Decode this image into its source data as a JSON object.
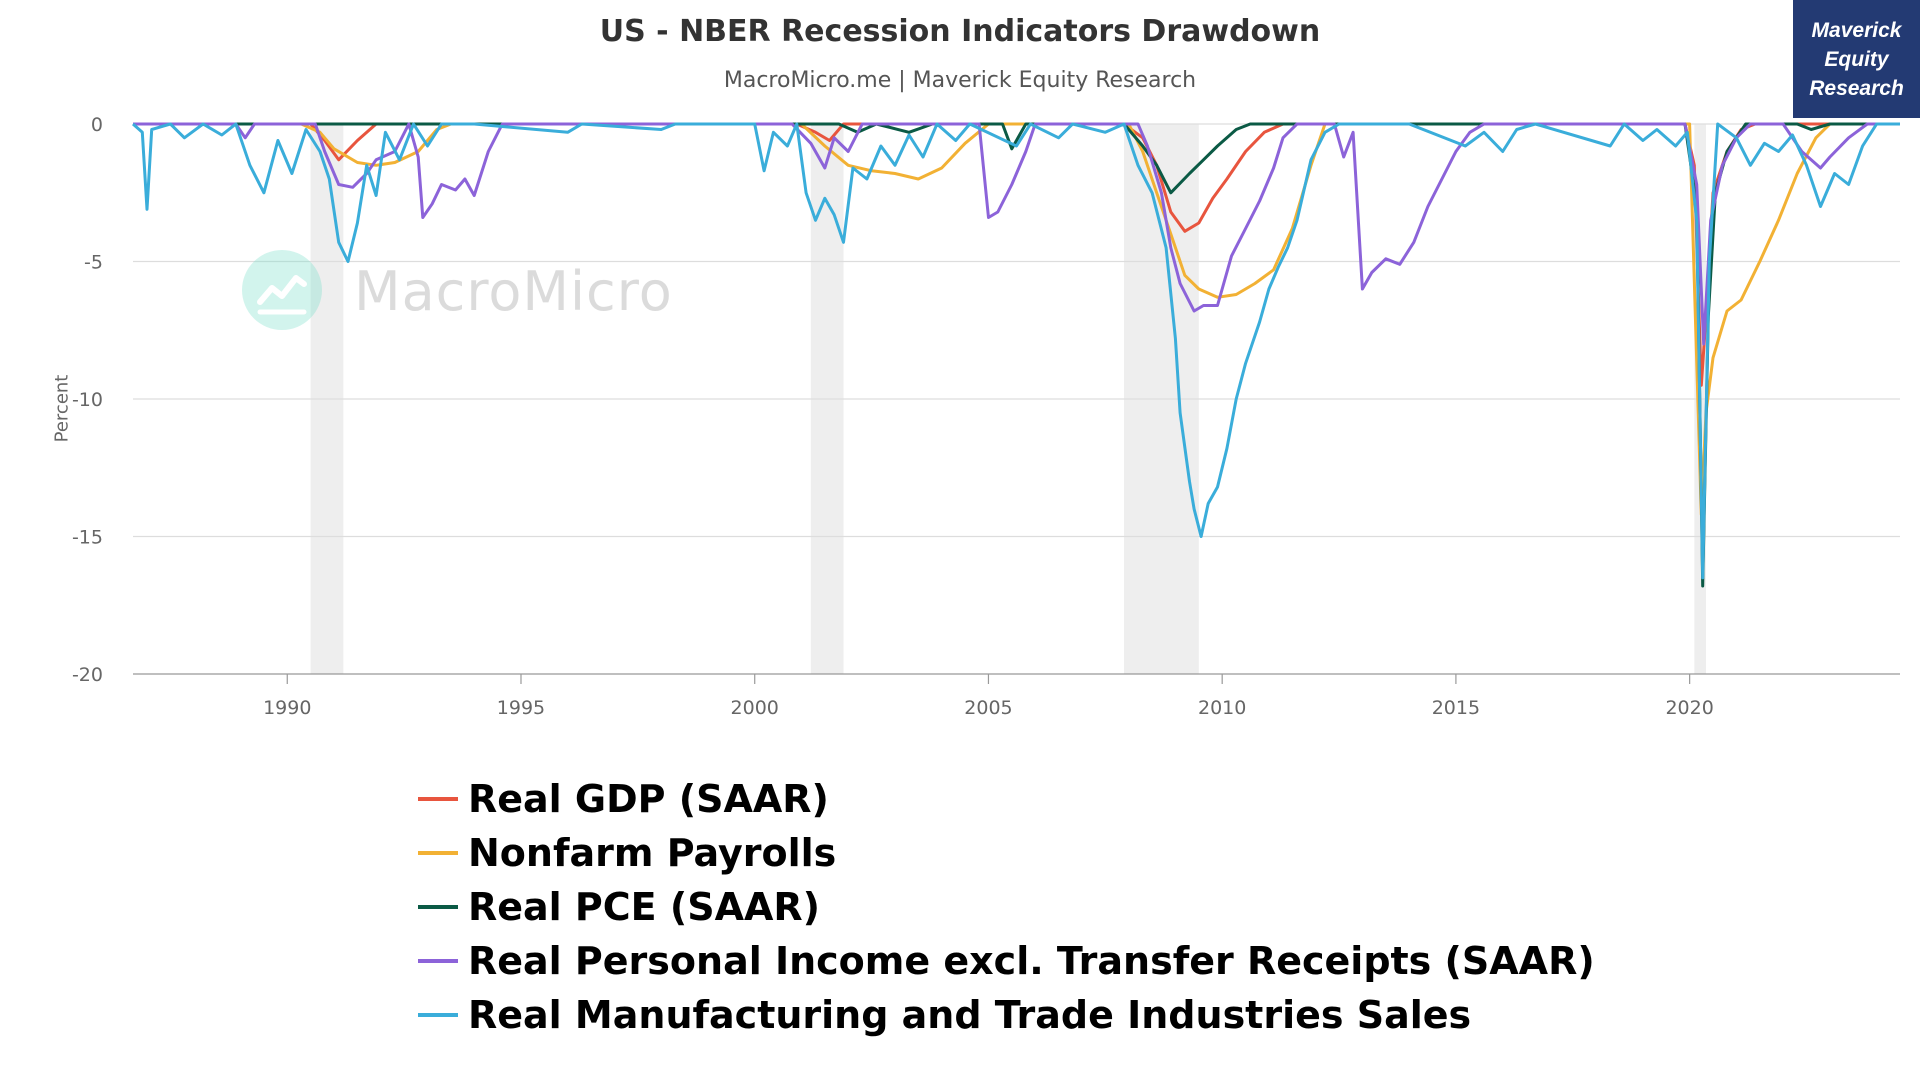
{
  "header": {
    "title": "US - NBER Recession Indicators Drawdown",
    "subtitle": "MacroMicro.me | Maverick Equity Research",
    "brand": "Maverick\nEquity\nResearch",
    "watermark": "MacroMicro"
  },
  "chart_data": {
    "type": "line",
    "title": "US - NBER Recession Indicators Drawdown",
    "xlabel": "",
    "ylabel": "Percent",
    "xlim": [
      1986.7,
      2024.5
    ],
    "ylim": [
      -20,
      0
    ],
    "x_ticks": [
      1990,
      1995,
      2000,
      2005,
      2010,
      2015,
      2020
    ],
    "y_ticks": [
      0,
      -5,
      -10,
      -15,
      -20
    ],
    "grid": true,
    "legend_position": "bottom",
    "recession_bands": [
      [
        1990.5,
        1991.2
      ],
      [
        2001.2,
        2001.9
      ],
      [
        2007.9,
        2009.5
      ],
      [
        2020.1,
        2020.35
      ]
    ],
    "series": [
      {
        "name": "Real GDP (SAAR)",
        "color": "#e8553e",
        "points": [
          [
            1986.7,
            0
          ],
          [
            1990.5,
            0
          ],
          [
            1990.8,
            -0.6
          ],
          [
            1991.1,
            -1.3
          ],
          [
            1991.5,
            -0.6
          ],
          [
            1991.9,
            0
          ],
          [
            2000.9,
            0
          ],
          [
            2001.3,
            -0.3
          ],
          [
            2001.6,
            -0.6
          ],
          [
            2001.9,
            0
          ],
          [
            2007.9,
            0
          ],
          [
            2008.3,
            -0.5
          ],
          [
            2008.6,
            -1.5
          ],
          [
            2008.9,
            -3.2
          ],
          [
            2009.2,
            -3.9
          ],
          [
            2009.5,
            -3.6
          ],
          [
            2009.8,
            -2.7
          ],
          [
            2010.1,
            -2.0
          ],
          [
            2010.5,
            -1.0
          ],
          [
            2010.9,
            -0.3
          ],
          [
            2011.3,
            0
          ],
          [
            2019.9,
            0
          ],
          [
            2020.1,
            -1.5
          ],
          [
            2020.25,
            -9.5
          ],
          [
            2020.35,
            -7.0
          ],
          [
            2020.5,
            -2.5
          ],
          [
            2020.8,
            -1.0
          ],
          [
            2021.1,
            -0.2
          ],
          [
            2021.4,
            0
          ],
          [
            2024.5,
            0
          ]
        ]
      },
      {
        "name": "Nonfarm Payrolls",
        "color": "#f2b134",
        "points": [
          [
            1986.7,
            0
          ],
          [
            1990.3,
            0
          ],
          [
            1990.7,
            -0.3
          ],
          [
            1991.0,
            -0.9
          ],
          [
            1991.5,
            -1.4
          ],
          [
            1991.9,
            -1.5
          ],
          [
            1992.3,
            -1.4
          ],
          [
            1992.8,
            -1.0
          ],
          [
            1993.2,
            -0.2
          ],
          [
            1993.5,
            0
          ],
          [
            2001.0,
            0
          ],
          [
            2001.5,
            -0.8
          ],
          [
            2002.0,
            -1.5
          ],
          [
            2002.5,
            -1.7
          ],
          [
            2003.0,
            -1.8
          ],
          [
            2003.5,
            -2.0
          ],
          [
            2004.0,
            -1.6
          ],
          [
            2004.5,
            -0.7
          ],
          [
            2005.0,
            0
          ],
          [
            2008.0,
            0
          ],
          [
            2008.3,
            -1.0
          ],
          [
            2008.6,
            -2.5
          ],
          [
            2008.9,
            -4.0
          ],
          [
            2009.2,
            -5.5
          ],
          [
            2009.5,
            -6.0
          ],
          [
            2009.9,
            -6.3
          ],
          [
            2010.3,
            -6.2
          ],
          [
            2010.7,
            -5.8
          ],
          [
            2011.1,
            -5.3
          ],
          [
            2011.5,
            -3.8
          ],
          [
            2011.9,
            -1.5
          ],
          [
            2012.2,
            0
          ],
          [
            2020.0,
            0
          ],
          [
            2020.25,
            -14.2
          ],
          [
            2020.35,
            -10.5
          ],
          [
            2020.5,
            -8.5
          ],
          [
            2020.8,
            -6.8
          ],
          [
            2021.1,
            -6.4
          ],
          [
            2021.5,
            -5.0
          ],
          [
            2021.9,
            -3.5
          ],
          [
            2022.3,
            -1.8
          ],
          [
            2022.7,
            -0.5
          ],
          [
            2023.0,
            0
          ],
          [
            2024.5,
            0
          ]
        ]
      },
      {
        "name": "Real PCE (SAAR)",
        "color": "#0b5a45",
        "points": [
          [
            1986.7,
            0
          ],
          [
            2001.8,
            0
          ],
          [
            2002.2,
            -0.3
          ],
          [
            2002.6,
            0
          ],
          [
            2003.3,
            -0.3
          ],
          [
            2003.8,
            0
          ],
          [
            2005.3,
            0
          ],
          [
            2005.5,
            -0.9
          ],
          [
            2005.8,
            0
          ],
          [
            2007.9,
            0
          ],
          [
            2008.3,
            -0.8
          ],
          [
            2008.6,
            -1.5
          ],
          [
            2008.9,
            -2.5
          ],
          [
            2009.3,
            -1.8
          ],
          [
            2009.6,
            -1.3
          ],
          [
            2009.9,
            -0.8
          ],
          [
            2010.3,
            -0.2
          ],
          [
            2010.6,
            0
          ],
          [
            2019.9,
            0
          ],
          [
            2020.15,
            -3.0
          ],
          [
            2020.28,
            -16.8
          ],
          [
            2020.4,
            -7.0
          ],
          [
            2020.55,
            -2.5
          ],
          [
            2020.8,
            -1.0
          ],
          [
            2021.2,
            0
          ],
          [
            2022.3,
            0
          ],
          [
            2022.6,
            -0.2
          ],
          [
            2023.0,
            0
          ],
          [
            2024.5,
            0
          ]
        ]
      },
      {
        "name": "Real Personal Income excl. Transfer Receipts (SAAR)",
        "color": "#8c63d9",
        "points": [
          [
            1986.7,
            0
          ],
          [
            1988.9,
            0
          ],
          [
            1989.1,
            -0.5
          ],
          [
            1989.3,
            0
          ],
          [
            1990.6,
            0
          ],
          [
            1990.8,
            -1.0
          ],
          [
            1991.1,
            -2.2
          ],
          [
            1991.4,
            -2.3
          ],
          [
            1991.7,
            -1.8
          ],
          [
            1991.9,
            -1.3
          ],
          [
            1992.3,
            -1.0
          ],
          [
            1992.6,
            0
          ],
          [
            1992.8,
            -1.2
          ],
          [
            1992.9,
            -3.4
          ],
          [
            1993.1,
            -2.9
          ],
          [
            1993.3,
            -2.2
          ],
          [
            1993.6,
            -2.4
          ],
          [
            1993.8,
            -2.0
          ],
          [
            1994.0,
            -2.6
          ],
          [
            1994.3,
            -1.0
          ],
          [
            1994.6,
            0
          ],
          [
            2000.8,
            0
          ],
          [
            2001.2,
            -0.7
          ],
          [
            2001.5,
            -1.6
          ],
          [
            2001.7,
            -0.5
          ],
          [
            2002.0,
            -1.0
          ],
          [
            2002.3,
            0
          ],
          [
            2004.8,
            0
          ],
          [
            2005.0,
            -3.4
          ],
          [
            2005.2,
            -3.2
          ],
          [
            2005.5,
            -2.2
          ],
          [
            2005.8,
            -1.0
          ],
          [
            2006.0,
            0
          ],
          [
            2008.2,
            0
          ],
          [
            2008.4,
            -0.8
          ],
          [
            2008.7,
            -2.5
          ],
          [
            2008.9,
            -4.5
          ],
          [
            2009.1,
            -5.8
          ],
          [
            2009.4,
            -6.8
          ],
          [
            2009.6,
            -6.6
          ],
          [
            2009.9,
            -6.6
          ],
          [
            2010.2,
            -4.8
          ],
          [
            2010.5,
            -3.8
          ],
          [
            2010.8,
            -2.8
          ],
          [
            2011.1,
            -1.6
          ],
          [
            2011.3,
            -0.5
          ],
          [
            2011.6,
            0
          ],
          [
            2012.4,
            0
          ],
          [
            2012.6,
            -1.2
          ],
          [
            2012.8,
            -0.3
          ],
          [
            2013.0,
            -6.0
          ],
          [
            2013.2,
            -5.4
          ],
          [
            2013.5,
            -4.9
          ],
          [
            2013.8,
            -5.1
          ],
          [
            2014.1,
            -4.3
          ],
          [
            2014.4,
            -3.0
          ],
          [
            2014.7,
            -2.0
          ],
          [
            2015.0,
            -1.0
          ],
          [
            2015.3,
            -0.3
          ],
          [
            2015.6,
            0
          ],
          [
            2019.9,
            0
          ],
          [
            2020.15,
            -2.2
          ],
          [
            2020.3,
            -8.0
          ],
          [
            2020.45,
            -3.5
          ],
          [
            2020.7,
            -1.5
          ],
          [
            2021.0,
            -0.5
          ],
          [
            2021.3,
            0
          ],
          [
            2022.0,
            0
          ],
          [
            2022.4,
            -1.0
          ],
          [
            2022.8,
            -1.6
          ],
          [
            2023.0,
            -1.2
          ],
          [
            2023.4,
            -0.5
          ],
          [
            2023.8,
            0
          ],
          [
            2024.5,
            0
          ]
        ]
      },
      {
        "name": "Real Manufacturing and Trade Industries Sales",
        "color": "#3aadda",
        "points": [
          [
            1986.7,
            0
          ],
          [
            1986.9,
            -0.3
          ],
          [
            1987.0,
            -3.1
          ],
          [
            1987.1,
            -0.2
          ],
          [
            1987.5,
            0
          ],
          [
            1987.8,
            -0.5
          ],
          [
            1988.2,
            0
          ],
          [
            1988.6,
            -0.4
          ],
          [
            1988.9,
            0
          ],
          [
            1989.2,
            -1.5
          ],
          [
            1989.5,
            -2.5
          ],
          [
            1989.8,
            -0.6
          ],
          [
            1990.1,
            -1.8
          ],
          [
            1990.4,
            -0.2
          ],
          [
            1990.7,
            -1.0
          ],
          [
            1990.9,
            -2.0
          ],
          [
            1991.1,
            -4.3
          ],
          [
            1991.3,
            -5.0
          ],
          [
            1991.5,
            -3.6
          ],
          [
            1991.7,
            -1.5
          ],
          [
            1991.9,
            -2.6
          ],
          [
            1992.1,
            -0.3
          ],
          [
            1992.4,
            -1.3
          ],
          [
            1992.7,
            0
          ],
          [
            1993.0,
            -0.8
          ],
          [
            1993.3,
            0
          ],
          [
            1994.0,
            0
          ],
          [
            1996.0,
            -0.3
          ],
          [
            1996.3,
            0
          ],
          [
            1998.0,
            -0.2
          ],
          [
            1998.3,
            0
          ],
          [
            2000.0,
            0
          ],
          [
            2000.2,
            -1.7
          ],
          [
            2000.4,
            -0.3
          ],
          [
            2000.7,
            -0.8
          ],
          [
            2000.9,
            0
          ],
          [
            2001.1,
            -2.5
          ],
          [
            2001.3,
            -3.5
          ],
          [
            2001.5,
            -2.7
          ],
          [
            2001.7,
            -3.3
          ],
          [
            2001.9,
            -4.3
          ],
          [
            2002.1,
            -1.6
          ],
          [
            2002.4,
            -2.0
          ],
          [
            2002.7,
            -0.8
          ],
          [
            2003.0,
            -1.5
          ],
          [
            2003.3,
            -0.4
          ],
          [
            2003.6,
            -1.2
          ],
          [
            2003.9,
            0
          ],
          [
            2004.3,
            -0.6
          ],
          [
            2004.6,
            0
          ],
          [
            2005.6,
            -0.8
          ],
          [
            2005.9,
            0
          ],
          [
            2006.5,
            -0.5
          ],
          [
            2006.8,
            0
          ],
          [
            2007.5,
            -0.3
          ],
          [
            2007.9,
            0
          ],
          [
            2008.2,
            -1.5
          ],
          [
            2008.5,
            -2.5
          ],
          [
            2008.8,
            -4.5
          ],
          [
            2009.0,
            -7.8
          ],
          [
            2009.1,
            -10.5
          ],
          [
            2009.3,
            -13.0
          ],
          [
            2009.4,
            -14.0
          ],
          [
            2009.55,
            -15.0
          ],
          [
            2009.7,
            -13.8
          ],
          [
            2009.9,
            -13.2
          ],
          [
            2010.1,
            -11.8
          ],
          [
            2010.3,
            -10.0
          ],
          [
            2010.5,
            -8.7
          ],
          [
            2010.8,
            -7.2
          ],
          [
            2011.0,
            -6.0
          ],
          [
            2011.2,
            -5.2
          ],
          [
            2011.4,
            -4.5
          ],
          [
            2011.6,
            -3.5
          ],
          [
            2011.9,
            -1.3
          ],
          [
            2012.2,
            -0.3
          ],
          [
            2012.5,
            0
          ],
          [
            2014.0,
            0
          ],
          [
            2015.2,
            -0.8
          ],
          [
            2015.6,
            -0.3
          ],
          [
            2016.0,
            -1.0
          ],
          [
            2016.3,
            -0.2
          ],
          [
            2016.7,
            0
          ],
          [
            2018.3,
            -0.8
          ],
          [
            2018.6,
            0
          ],
          [
            2019.0,
            -0.6
          ],
          [
            2019.3,
            -0.2
          ],
          [
            2019.7,
            -0.8
          ],
          [
            2019.95,
            -0.3
          ],
          [
            2020.15,
            -3.5
          ],
          [
            2020.28,
            -16.5
          ],
          [
            2020.42,
            -5.0
          ],
          [
            2020.6,
            0
          ],
          [
            2021.0,
            -0.5
          ],
          [
            2021.3,
            -1.5
          ],
          [
            2021.6,
            -0.7
          ],
          [
            2021.9,
            -1.0
          ],
          [
            2022.2,
            -0.4
          ],
          [
            2022.5,
            -1.5
          ],
          [
            2022.8,
            -3.0
          ],
          [
            2023.1,
            -1.8
          ],
          [
            2023.4,
            -2.2
          ],
          [
            2023.7,
            -0.8
          ],
          [
            2024.0,
            0
          ],
          [
            2024.5,
            0
          ]
        ]
      }
    ]
  }
}
